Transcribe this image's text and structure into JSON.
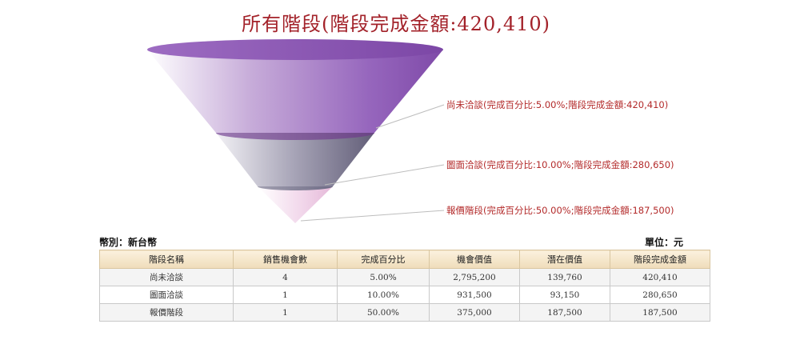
{
  "chart_data": {
    "type": "funnel",
    "title": "所有階段(階段完成金額:420,410)",
    "stages": [
      {
        "name": "尚未洽談",
        "label": "尚未洽談(完成百分比:5.00%;階段完成金額:420,410)",
        "percent": 5.0,
        "amount": 420410
      },
      {
        "name": "圖面洽談",
        "label": "圖面洽談(完成百分比:10.00%;階段完成金額:280,650)",
        "percent": 10.0,
        "amount": 280650
      },
      {
        "name": "報價階段",
        "label": "報價階段(完成百分比:50.00%;階段完成金額:187,500)",
        "percent": 50.0,
        "amount": 187500
      }
    ],
    "colors": [
      "#8a58b0",
      "#7d7892",
      "#ecc9e3"
    ]
  },
  "currency_label": "幣別：新台幣",
  "unit_label": "單位：元",
  "table": {
    "headers": [
      "階段名稱",
      "銷售機會數",
      "完成百分比",
      "機會價值",
      "潛在價值",
      "階段完成金額"
    ],
    "rows": [
      [
        "尚未洽談",
        "4",
        "5.00%",
        "2,795,200",
        "139,760",
        "420,410"
      ],
      [
        "圖面洽談",
        "1",
        "10.00%",
        "931,500",
        "93,150",
        "280,650"
      ],
      [
        "報價階段",
        "1",
        "50.00%",
        "375,000",
        "187,500",
        "187,500"
      ]
    ]
  }
}
